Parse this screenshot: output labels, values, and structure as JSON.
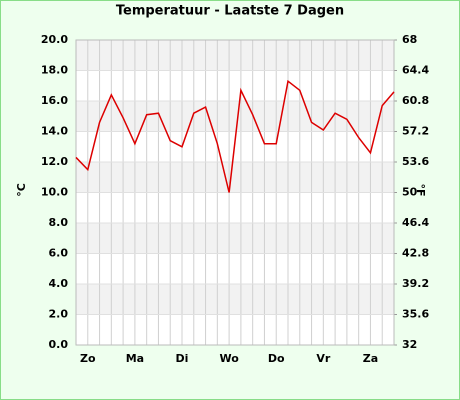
{
  "chart_data": {
    "type": "line",
    "title": "Temperatuur - Laatste 7 Dagen",
    "y_label": "°C",
    "y2_label": "°F",
    "categories": [
      null,
      "Zo",
      null,
      null,
      null,
      "Ma",
      null,
      null,
      null,
      "Di",
      null,
      null,
      null,
      "Wo",
      null,
      null,
      null,
      "Do",
      null,
      null,
      null,
      "Vr",
      null,
      null,
      null,
      "Za",
      null,
      null
    ],
    "series": [
      {
        "name": "Temperatuur",
        "color": "#dd0000",
        "values": [
          12.3,
          11.5,
          14.6,
          16.4,
          14.9,
          13.2,
          15.1,
          15.2,
          13.4,
          13.0,
          15.2,
          15.6,
          13.2,
          10.0,
          16.7,
          15.1,
          13.2,
          13.2,
          17.3,
          16.7,
          14.6,
          14.1,
          15.2,
          14.8,
          13.6,
          12.6,
          15.7,
          16.6
        ]
      }
    ],
    "ylim": [
      0,
      20
    ],
    "yticks": [
      {
        "value": 0,
        "label": "0.0"
      },
      {
        "value": 2,
        "label": "2.0"
      },
      {
        "value": 4,
        "label": "4.0"
      },
      {
        "value": 6,
        "label": "6.0"
      },
      {
        "value": 8,
        "label": "8.0"
      },
      {
        "value": 10,
        "label": "10.0"
      },
      {
        "value": 12,
        "label": "12.0"
      },
      {
        "value": 14,
        "label": "14.0"
      },
      {
        "value": 16,
        "label": "16.0"
      },
      {
        "value": 18,
        "label": "18.0"
      },
      {
        "value": 20,
        "label": "20.0"
      }
    ],
    "y2lim": [
      32,
      68
    ],
    "y2ticks": [
      32,
      35.6,
      39.2,
      42.8,
      46.4,
      50,
      53.6,
      57.2,
      60.8,
      64.4,
      68
    ],
    "grid": true
  }
}
